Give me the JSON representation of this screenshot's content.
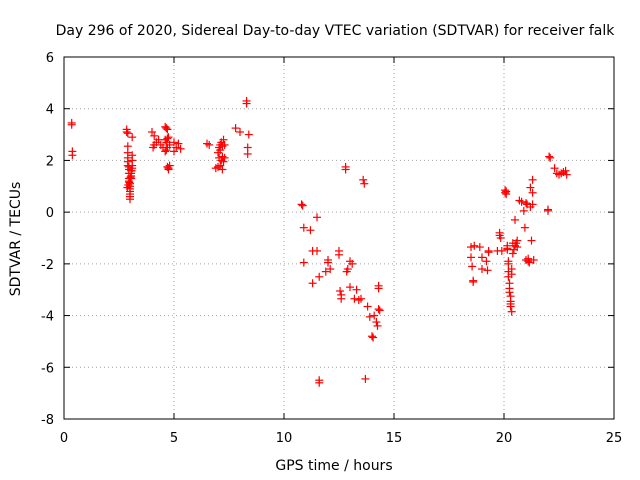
{
  "chart_data": {
    "type": "scatter",
    "title": "Day 296 of 2020, Sidereal Day-to-day VTEC variation (SDTVAR) for receiver falk",
    "xlabel": "GPS time / hours",
    "ylabel": "SDTVAR / TECUs",
    "xlim": [
      0,
      25
    ],
    "ylim": [
      -8,
      6
    ],
    "xticks": [
      0,
      5,
      10,
      15,
      20,
      25
    ],
    "yticks": [
      -8,
      -6,
      -4,
      -2,
      0,
      2,
      4,
      6
    ],
    "xtick_labels": [
      "0",
      "5",
      "10",
      "15",
      "20",
      "25"
    ],
    "ytick_labels": [
      "-8",
      "-6",
      "-4",
      "-2",
      "0",
      "2",
      "4",
      "6"
    ],
    "grid": true,
    "marker": "+",
    "color": "#ff0000",
    "series": [
      {
        "name": "SDTVAR",
        "x": [
          0.35,
          0.35,
          0.38,
          0.38,
          2.85,
          2.85,
          2.9,
          2.9,
          2.9,
          2.9,
          2.9,
          2.9,
          2.95,
          2.95,
          2.95,
          2.95,
          2.95,
          3.0,
          3.0,
          3.0,
          3.0,
          3.0,
          3.0,
          3.0,
          3.05,
          3.05,
          3.05,
          3.05,
          3.1,
          3.1,
          3.1,
          3.1,
          3.1,
          2.88,
          2.92,
          2.97,
          3.02,
          3.07,
          4.0,
          4.05,
          4.1,
          4.1,
          4.2,
          4.3,
          4.4,
          4.5,
          4.6,
          4.6,
          4.65,
          4.65,
          4.7,
          4.7,
          4.7,
          4.75,
          4.75,
          4.8,
          4.6,
          4.65,
          4.7,
          4.75,
          4.8,
          5.0,
          5.0,
          5.1,
          5.2,
          5.3,
          6.5,
          6.6,
          6.9,
          7.0,
          7.0,
          7.05,
          7.05,
          7.1,
          7.1,
          7.1,
          7.15,
          7.15,
          7.2,
          7.2,
          7.2,
          7.25,
          7.25,
          7.3,
          7.3,
          7.8,
          8.0,
          8.3,
          8.3,
          8.35,
          8.35,
          8.4,
          10.8,
          10.85,
          10.9,
          10.9,
          11.2,
          11.3,
          11.3,
          11.5,
          11.5,
          11.6,
          11.6,
          11.6,
          11.9,
          12.0,
          12.0,
          12.1,
          12.5,
          12.5,
          12.55,
          12.6,
          12.6,
          12.8,
          12.8,
          12.85,
          12.9,
          13.0,
          13.0,
          13.1,
          13.2,
          13.3,
          13.4,
          13.5,
          13.6,
          13.65,
          13.7,
          13.8,
          13.9,
          14.0,
          14.05,
          14.1,
          14.2,
          14.25,
          14.3,
          14.35,
          14.3,
          14.3,
          18.5,
          18.5,
          18.55,
          18.6,
          18.6,
          18.65,
          18.9,
          19.0,
          19.0,
          19.2,
          19.25,
          19.3,
          19.3,
          19.7,
          19.8,
          19.8,
          19.85,
          19.9,
          20.05,
          20.05,
          20.1,
          20.1,
          20.15,
          20.15,
          20.15,
          20.2,
          20.2,
          20.2,
          20.2,
          20.25,
          20.25,
          20.25,
          20.3,
          20.3,
          20.3,
          20.3,
          20.35,
          20.35,
          20.35,
          20.4,
          20.4,
          20.45,
          20.5,
          20.5,
          20.55,
          20.6,
          20.6,
          20.7,
          20.8,
          20.9,
          20.95,
          21.0,
          21.0,
          21.05,
          21.1,
          21.1,
          21.15,
          21.2,
          21.2,
          21.25,
          21.3,
          21.3,
          21.3,
          21.35,
          22.0,
          22.0,
          22.05,
          22.1,
          22.3,
          22.4,
          22.5,
          22.6,
          22.7,
          22.8,
          22.85
        ],
        "y": [
          3.45,
          3.38,
          2.35,
          2.2,
          3.2,
          3.1,
          3.05,
          2.55,
          2.3,
          2.1,
          1.95,
          1.8,
          1.75,
          1.65,
          1.5,
          1.3,
          1.2,
          1.1,
          1.0,
          0.9,
          0.8,
          0.7,
          0.6,
          0.5,
          1.6,
          1.5,
          1.4,
          1.3,
          2.0,
          2.9,
          2.2,
          1.8,
          1.7,
          0.95,
          1.05,
          1.15,
          1.35,
          1.6,
          3.1,
          2.5,
          2.95,
          2.6,
          2.7,
          2.8,
          2.6,
          2.5,
          2.35,
          3.3,
          3.25,
          2.7,
          2.85,
          2.5,
          1.75,
          1.7,
          1.65,
          1.8,
          2.8,
          2.4,
          3.2,
          2.9,
          2.6,
          2.7,
          2.35,
          2.5,
          2.65,
          2.45,
          2.65,
          2.6,
          1.7,
          1.75,
          2.3,
          2.5,
          2.1,
          2.6,
          2.4,
          1.8,
          2.0,
          2.7,
          1.65,
          2.15,
          2.55,
          2.8,
          1.95,
          2.1,
          2.6,
          3.25,
          3.1,
          4.2,
          4.3,
          2.5,
          2.25,
          3.0,
          0.3,
          0.25,
          -0.6,
          -1.95,
          -0.7,
          -1.5,
          -2.75,
          -1.5,
          -0.2,
          -2.5,
          -6.5,
          -6.6,
          -2.3,
          -1.95,
          -1.85,
          -2.2,
          -1.5,
          -1.65,
          -3.05,
          -3.2,
          -3.35,
          1.75,
          1.65,
          -2.3,
          -2.2,
          -1.9,
          -2.9,
          -2.0,
          -3.35,
          -3.0,
          -3.4,
          -3.35,
          1.25,
          1.1,
          -6.45,
          -3.65,
          -4.05,
          -4.8,
          -4.85,
          -4.0,
          -4.25,
          -4.4,
          -3.75,
          -3.8,
          -2.95,
          -2.85,
          -1.35,
          -1.75,
          -2.1,
          -2.7,
          -2.65,
          -1.3,
          -1.35,
          -1.75,
          -2.2,
          -1.9,
          -2.25,
          -1.5,
          -1.55,
          -1.5,
          -0.9,
          -0.8,
          -1.0,
          -1.5,
          0.85,
          0.75,
          0.8,
          0.7,
          -1.45,
          -1.3,
          -1.4,
          -1.9,
          -2.0,
          -2.3,
          -2.5,
          -2.75,
          -2.95,
          -3.1,
          -3.25,
          -3.45,
          -3.65,
          -3.55,
          -3.85,
          -2.4,
          -2.2,
          -1.6,
          -1.2,
          -1.45,
          -1.3,
          -0.3,
          -1.2,
          -1.35,
          -1.1,
          0.45,
          0.4,
          0.05,
          -0.6,
          -1.85,
          0.35,
          0.3,
          -1.8,
          -1.9,
          -1.95,
          0.2,
          0.95,
          -1.1,
          1.25,
          0.75,
          0.3,
          -1.85,
          0.1,
          0.05,
          2.15,
          2.1,
          1.7,
          1.5,
          1.45,
          1.5,
          1.55,
          1.6,
          1.45
        ]
      }
    ]
  }
}
